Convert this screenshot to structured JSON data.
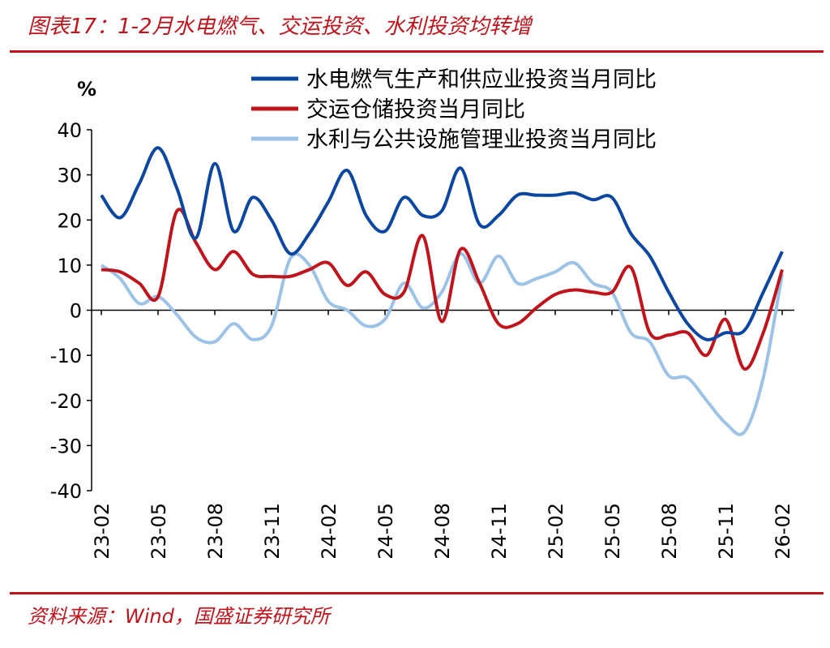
{
  "title": "图表17：1-2月水电燃气、交运投资、水利投资均转增",
  "source": "资料来源：Wind，国盛证券研究所",
  "chart_data": {
    "type": "line",
    "ylabel": "%",
    "ylim": [
      -40,
      40
    ],
    "yticks": [
      40,
      30,
      20,
      10,
      0,
      -10,
      -20,
      -30,
      -40
    ],
    "x": [
      "23-02",
      "23-03",
      "23-04",
      "23-05",
      "23-06",
      "23-07",
      "23-08",
      "23-09",
      "23-10",
      "23-11",
      "23-12",
      "24-01",
      "24-02",
      "24-03",
      "24-04",
      "24-05",
      "24-06",
      "24-07",
      "24-08",
      "24-09",
      "24-10",
      "24-11",
      "24-12",
      "25-01",
      "25-02",
      "25-03",
      "25-04",
      "25-05",
      "25-06",
      "25-07",
      "25-08",
      "25-09",
      "25-10",
      "25-11",
      "25-12",
      "26-01",
      "26-02"
    ],
    "xticks": [
      "23-02",
      "23-05",
      "23-08",
      "23-11",
      "24-02",
      "24-05",
      "24-08",
      "24-11",
      "25-02",
      "25-05",
      "25-08",
      "25-11",
      "26-02"
    ],
    "legend_position": "top-right",
    "series": [
      {
        "name": "水电燃气生产和供应业投资当月同比",
        "color": "#0b47a1",
        "values": [
          25.5,
          20.5,
          28,
          36,
          27,
          16,
          32.5,
          17.5,
          25,
          20,
          12.5,
          17,
          24,
          31,
          21,
          17.5,
          25,
          21,
          22,
          31.5,
          19,
          21,
          25.5,
          25.5,
          25.5,
          26,
          24.5,
          25,
          17,
          12,
          4,
          -3,
          -6.5,
          -5,
          -4.5,
          4,
          13
        ]
      },
      {
        "name": "交运仓储投资当月同比",
        "color": "#c0141c",
        "values": [
          9,
          8.5,
          6,
          3,
          22,
          15,
          9,
          13,
          8,
          7.5,
          7.5,
          9,
          10.5,
          5.5,
          8.5,
          3.5,
          4,
          16.5,
          -2.5,
          13.5,
          6,
          -3,
          -3,
          0.5,
          3.5,
          4.5,
          4,
          4,
          9.5,
          -5,
          -5.5,
          -5,
          -10,
          -2,
          -13,
          -5,
          9
        ]
      },
      {
        "name": "水利与公共设施管理业投资当月同比",
        "color": "#9cc3e6",
        "values": [
          10,
          7,
          1.5,
          3,
          -1,
          -6,
          -7,
          -3,
          -6.5,
          -3.5,
          11.5,
          10,
          2,
          0,
          -3.5,
          -2,
          6,
          0.5,
          4,
          12.5,
          6,
          12,
          6,
          7,
          8.5,
          10.5,
          6,
          4,
          -5,
          -7,
          -14.5,
          -15,
          -20,
          -25,
          -27,
          -15,
          8
        ]
      }
    ]
  }
}
